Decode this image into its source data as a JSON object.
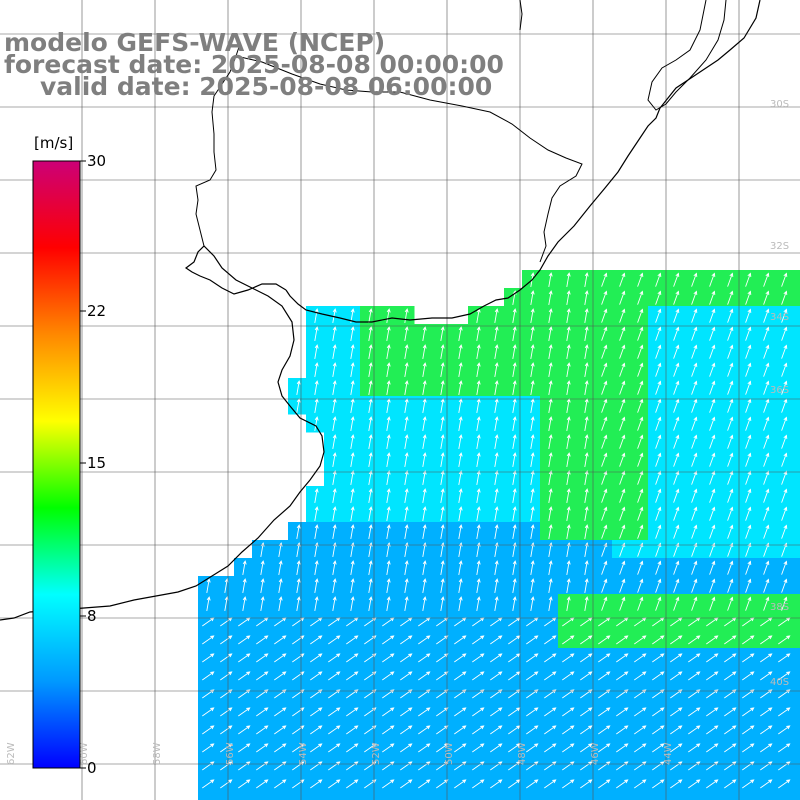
{
  "title": {
    "line1": "modelo GEFS-WAVE (NCEP)",
    "line2": "forecast date: 2025-08-08 00:00:00",
    "line3": "valid date: 2025-08-08 06:00:00"
  },
  "colorbar": {
    "unit": "[m/s]",
    "ticks": [
      "30",
      "22",
      "15",
      "8",
      "0"
    ],
    "tick_values": [
      30,
      22,
      15,
      8,
      0
    ],
    "colors": [
      "#0000ff",
      "#0099ff",
      "#00ffff",
      "#00ff00",
      "#ffff00",
      "#ff8800",
      "#ff0000",
      "#cc0077"
    ]
  },
  "map": {
    "variable": "wind speed",
    "colors": {
      "land": "#ffffff",
      "coast": "#000000",
      "grid": "#555555",
      "arrow": "#ffffff",
      "cyan": "#00e5ff",
      "blue": "#00b0ff",
      "green": "#22ee55",
      "labels": "#bbbbbb"
    },
    "lat_labels": [
      "30S",
      "32S",
      "34S",
      "36S",
      "38S",
      "40S"
    ],
    "lon_labels": [
      "62W",
      "60W",
      "58W",
      "56W",
      "54W",
      "52W",
      "50W",
      "48W",
      "46W",
      "44W"
    ]
  }
}
